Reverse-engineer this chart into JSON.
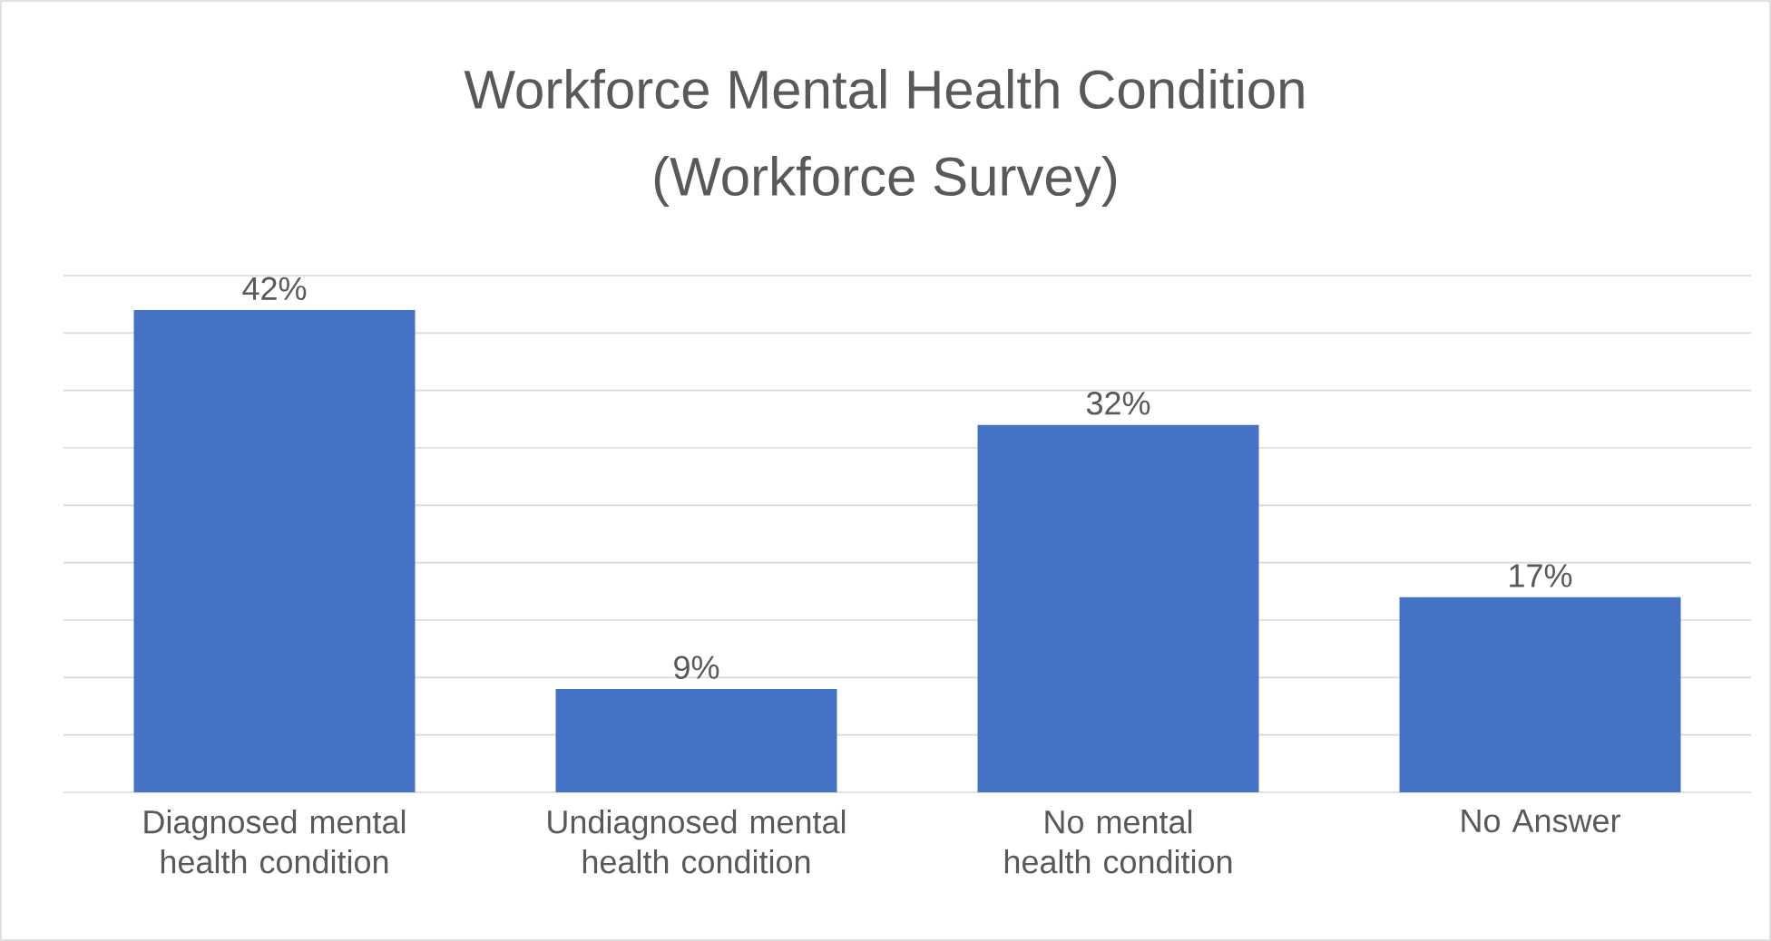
{
  "chart_data": {
    "type": "bar",
    "title": "Workforce Mental Health Condition",
    "subtitle": "(Workforce Survey)",
    "categories": [
      "Diagnosed mental health condition",
      "Undiagnosed mental health condition",
      "No mental health condition",
      "No Answer"
    ],
    "values": [
      42,
      9,
      32,
      17
    ],
    "value_labels": [
      "42%",
      "9%",
      "32%",
      "17%"
    ],
    "color": "#4472c4",
    "ylim": [
      0,
      45
    ],
    "yticks": [
      {
        "value": 0,
        "label": null
      },
      {
        "value": 5,
        "label": null
      },
      {
        "value": 10,
        "label": null
      },
      {
        "value": 15,
        "label": null
      },
      {
        "value": 20,
        "label": null
      },
      {
        "value": 25,
        "label": null
      },
      {
        "value": 30,
        "label": null
      },
      {
        "value": 35,
        "label": null
      },
      {
        "value": 40,
        "label": null
      },
      {
        "value": 45,
        "label": null
      }
    ],
    "grid": "y",
    "tick_labels": "x"
  }
}
